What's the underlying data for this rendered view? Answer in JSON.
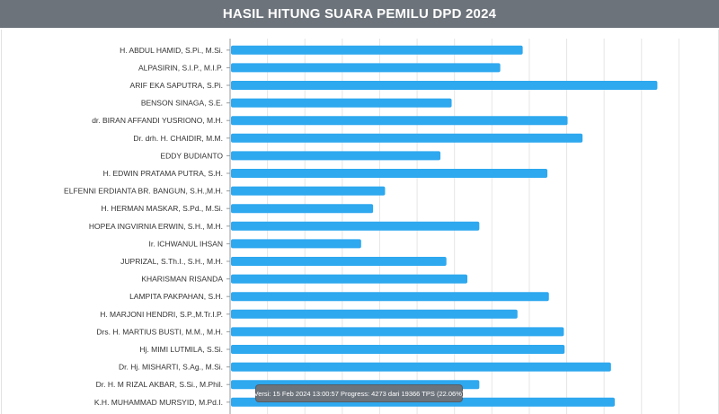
{
  "header": {
    "title": "HASIL HITUNG SUARA PEMILU DPD 2024"
  },
  "status": {
    "text": "Versi: 15 Feb 2024 13:00:57 Progress: 4273 dari 19366 TPS (22.06%)"
  },
  "colors": {
    "bar": "#2ea8ef",
    "header_bg": "#6c737b",
    "grid": "#e6e6e6",
    "axis": "#999999"
  },
  "chart_data": {
    "type": "bar",
    "orientation": "horizontal",
    "title": "HASIL HITUNG SUARA PEMILU DPD 2024",
    "xlim": [
      0,
      6.5
    ],
    "grid": true,
    "categories": [
      "H. ABDUL HAMID, S.Pi., M.Si.",
      "ALPASIRIN, S.I.P., M.I.P.",
      "ARIF EKA SAPUTRA, S.Pi.",
      "BENSON SINAGA, S.E.",
      "dr. BIRAN AFFANDI YUSRIONO, M.H.",
      "Dr. drh. H. CHAIDIR, M.M.",
      "EDDY BUDIANTO",
      "H. EDWIN PRATAMA PUTRA, S.H.",
      "ELFENNI ERDIANTA BR. BANGUN, S.H.,M.H.",
      "H. HERMAN MASKAR, S.Pd., M.Si.",
      "HOPEA INGVIRNIA ERWIN, S.H., M.H.",
      "Ir. ICHWANUL IHSAN",
      "JUPRIZAL, S.Th.I., S.H., M.H.",
      "KHARISMAN RISANDA",
      "LAMPITA PAKPAHAN, S.H.",
      "H. MARJONI HENDRI, S.P.,M.Tr.I.P.",
      "Drs. H. MARTIUS BUSTI, M.M., M.H.",
      "Hj. MIMI LUTMILA, S.Si.",
      "Dr. Hj. MISHARTI, S.Ag., M.Si.",
      "Dr. H. M RIZAL AKBAR, S.Si., M.Phil.",
      "K.H. MUHAMMAD MURSYID, M.Pd.I."
    ],
    "values": [
      3.9,
      3.6,
      5.7,
      2.95,
      4.5,
      4.7,
      2.8,
      4.23,
      2.06,
      1.9,
      3.32,
      1.74,
      2.88,
      3.16,
      4.25,
      3.83,
      4.45,
      4.46,
      5.08,
      3.32,
      5.13
    ]
  }
}
